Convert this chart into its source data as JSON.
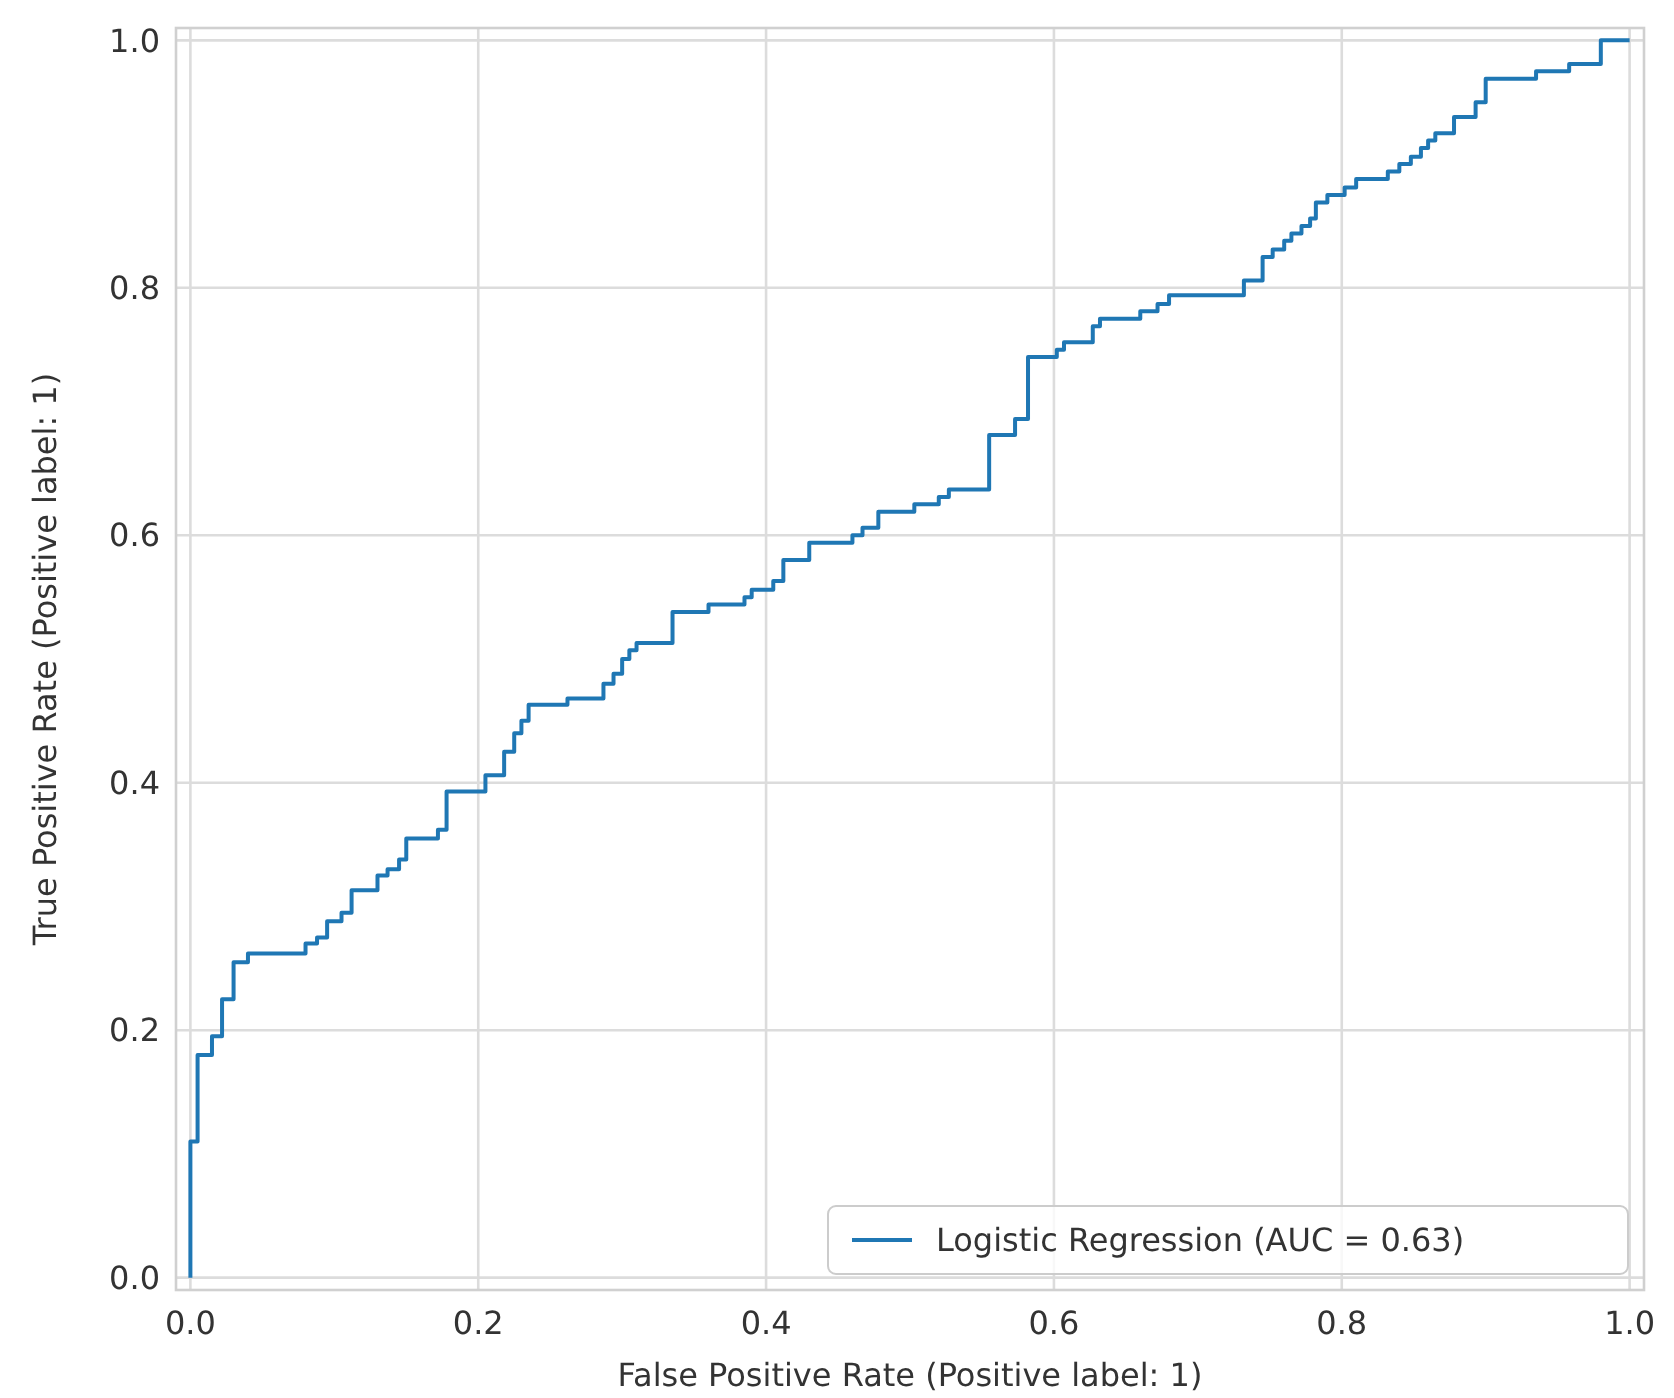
{
  "chart_data": {
    "type": "step",
    "xlabel": "False Positive Rate (Positive label: 1)",
    "ylabel": "True Positive Rate (Positive label: 1)",
    "xlim": [
      -0.01,
      1.01
    ],
    "ylim": [
      -0.01,
      1.01
    ],
    "xticks": [
      {
        "value": 0,
        "label": "0.0"
      },
      0.2,
      0.4,
      0.6,
      0.8,
      {
        "value": 1,
        "label": "1.0"
      }
    ],
    "yticks": [
      {
        "value": 0,
        "label": "0.0"
      },
      0.2,
      0.4,
      0.6,
      0.8,
      {
        "value": 1,
        "label": "1.0"
      }
    ],
    "grid": true,
    "legend": "bottom right",
    "series": [
      {
        "name": "Logistic Regression (AUC = 0.63)",
        "color": "#1f77b4",
        "x": [
          0,
          0,
          0.005,
          0.015,
          0.022,
          0.03,
          0.04,
          0.08,
          0.088,
          0.095,
          0.105,
          0.112,
          0.13,
          0.137,
          0.145,
          0.15,
          0.172,
          0.178,
          0.205,
          0.218,
          0.225,
          0.23,
          0.235,
          0.262,
          0.287,
          0.294,
          0.3,
          0.305,
          0.31,
          0.335,
          0.36,
          0.385,
          0.39,
          0.405,
          0.412,
          0.43,
          0.46,
          0.467,
          0.478,
          0.503,
          0.52,
          0.527,
          0.555,
          0.573,
          0.582,
          0.602,
          0.607,
          0.627,
          0.632,
          0.66,
          0.672,
          0.68,
          0.732,
          0.745,
          0.752,
          0.76,
          0.765,
          0.772,
          0.778,
          0.782,
          0.79,
          0.802,
          0.81,
          0.832,
          0.84,
          0.848,
          0.855,
          0.86,
          0.865,
          0.878,
          0.893,
          0.9,
          0.935,
          0.958,
          0.98,
          1
        ],
        "values": [
          0,
          0.11,
          0.18,
          0.195,
          0.225,
          0.255,
          0.262,
          0.27,
          0.275,
          0.288,
          0.295,
          0.313,
          0.325,
          0.33,
          0.338,
          0.355,
          0.362,
          0.393,
          0.406,
          0.425,
          0.44,
          0.45,
          0.463,
          0.468,
          0.48,
          0.488,
          0.5,
          0.507,
          0.513,
          0.538,
          0.544,
          0.55,
          0.556,
          0.563,
          0.58,
          0.594,
          0.6,
          0.606,
          0.619,
          0.625,
          0.631,
          0.637,
          0.681,
          0.694,
          0.744,
          0.75,
          0.756,
          0.769,
          0.775,
          0.781,
          0.787,
          0.794,
          0.806,
          0.825,
          0.831,
          0.838,
          0.844,
          0.85,
          0.856,
          0.869,
          0.875,
          0.881,
          0.888,
          0.894,
          0.9,
          0.906,
          0.913,
          0.919,
          0.925,
          0.938,
          0.95,
          0.969,
          0.975,
          0.981,
          1,
          1
        ]
      }
    ]
  }
}
